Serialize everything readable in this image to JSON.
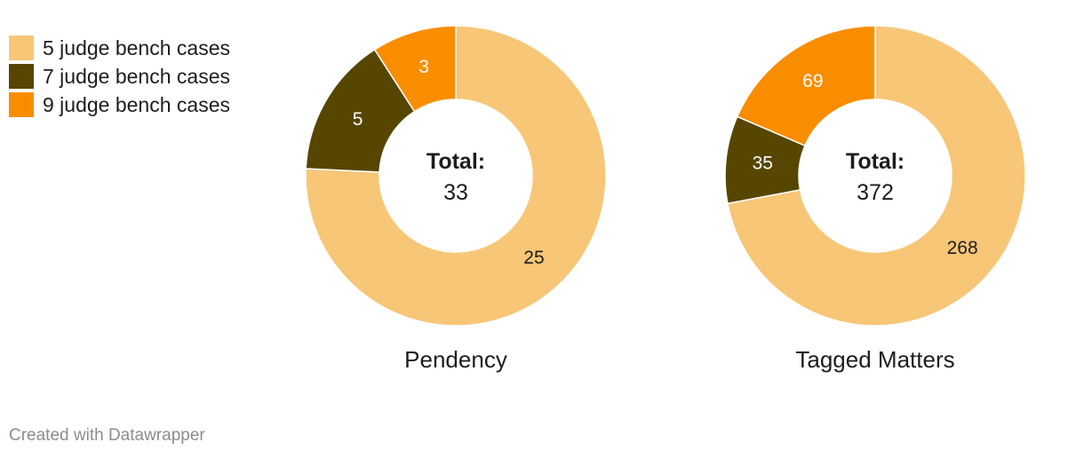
{
  "legend": [
    {
      "label": "5 judge bench cases",
      "color": "#f7c677"
    },
    {
      "label": "7 judge bench cases",
      "color": "#564600"
    },
    {
      "label": "9 judge bench cases",
      "color": "#f98d00"
    }
  ],
  "chart_data": [
    {
      "type": "pie",
      "title": "Pendency",
      "center_label": "Total:",
      "total": "33",
      "slices": [
        {
          "label": "5 judge bench cases",
          "value": 25
        },
        {
          "label": "7 judge bench cases",
          "value": 5
        },
        {
          "label": "9 judge bench cases",
          "value": 3
        }
      ]
    },
    {
      "type": "pie",
      "title": "Tagged Matters",
      "center_label": "Total:",
      "total": "372",
      "slices": [
        {
          "label": "5 judge bench cases",
          "value": 268
        },
        {
          "label": "7 judge bench cases",
          "value": 35
        },
        {
          "label": "9 judge bench cases",
          "value": 69
        }
      ]
    }
  ],
  "footer": {
    "credit": "Created with Datawrapper"
  }
}
